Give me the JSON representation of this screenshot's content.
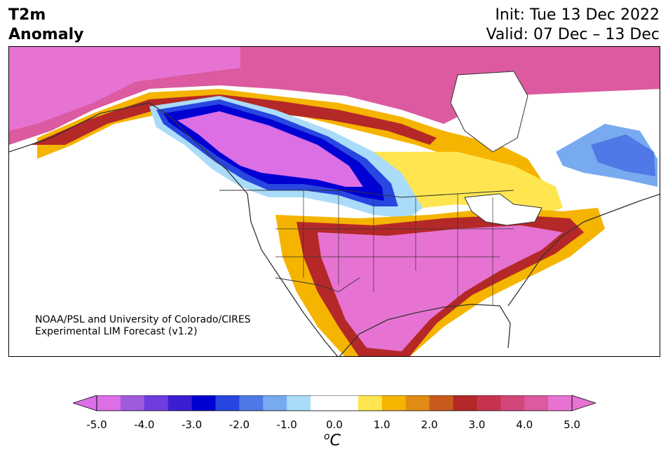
{
  "header": {
    "title_line1": "T2m",
    "title_line2": "Anomaly",
    "init_text": "Init: Tue 13 Dec 2022",
    "valid_text": "Valid: 07 Dec – 13 Dec"
  },
  "map": {
    "region": "North America",
    "credit_line1": "NOAA/PSL and University of Colorado/CIRES",
    "credit_line2": "Experimental LIM Forecast (v1.2)",
    "coastline_color": "#333333"
  },
  "colorbar": {
    "colors": [
      "#dc6ee6",
      "#a05adc",
      "#6e3ce0",
      "#3c1ed2",
      "#0000d2",
      "#2846e0",
      "#5078e6",
      "#78aaf0",
      "#aadcfa",
      "#ffffff",
      "#ffffff",
      "#ffe650",
      "#f5b400",
      "#e08c14",
      "#c85a1e",
      "#b42828",
      "#c83250",
      "#d24678",
      "#dc5aa0",
      "#e673d2"
    ],
    "left_extend_color": "#dc6ee6",
    "right_extend_color": "#e673d2",
    "tick_labels": [
      "-5.0",
      "-4.0",
      "-3.0",
      "-2.0",
      "-1.0",
      "0.0",
      "1.0",
      "2.0",
      "3.0",
      "4.0",
      "5.0"
    ],
    "unit_base": "C",
    "unit_sup": "o"
  }
}
